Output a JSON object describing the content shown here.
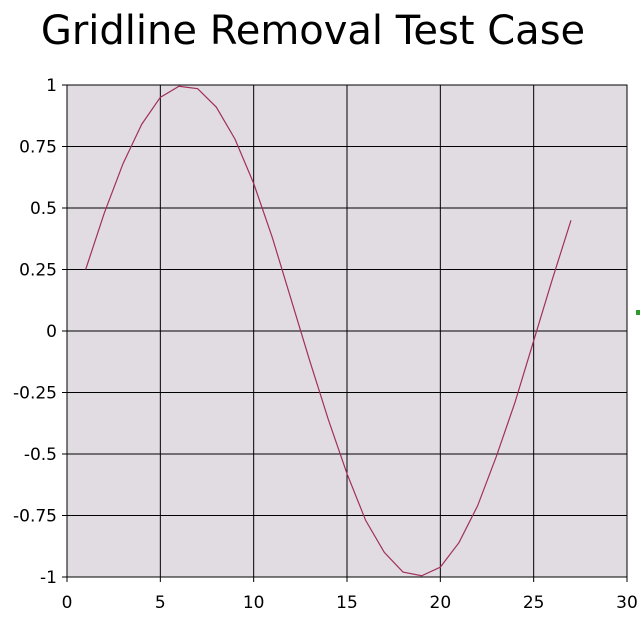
{
  "chart_data": {
    "type": "line",
    "title": "Gridline Removal Test Case",
    "xlabel": "",
    "ylabel": "",
    "xlim": [
      0,
      30
    ],
    "ylim": [
      -1,
      1
    ],
    "x_ticks": [
      "0",
      "5",
      "10",
      "15",
      "20",
      "25",
      "30"
    ],
    "y_ticks": [
      "1",
      "0.75",
      "0.5",
      "0.25",
      "0",
      "-0.25",
      "-0.5",
      "-0.75",
      "-1"
    ],
    "grid": true,
    "legend": "none",
    "series": [
      {
        "x": [
          1,
          2,
          3,
          4,
          5,
          6,
          7,
          8,
          9,
          10,
          11,
          12,
          13,
          14,
          15,
          16,
          17,
          18,
          19,
          20,
          21,
          22,
          23,
          24,
          25,
          26,
          27
        ],
        "y": [
          0.25,
          0.48,
          0.68,
          0.84,
          0.95,
          0.995,
          0.985,
          0.91,
          0.78,
          0.6,
          0.38,
          0.13,
          -0.12,
          -0.36,
          -0.58,
          -0.77,
          -0.9,
          -0.98,
          -0.995,
          -0.96,
          -0.86,
          -0.71,
          -0.51,
          -0.29,
          -0.04,
          0.21,
          0.45
        ],
        "color": "#a0305a"
      }
    ],
    "colors": {
      "plot_background": "#e1dce1",
      "gridline": "#000000",
      "line": "#a0305a",
      "marker": "#2e9a2e"
    }
  }
}
